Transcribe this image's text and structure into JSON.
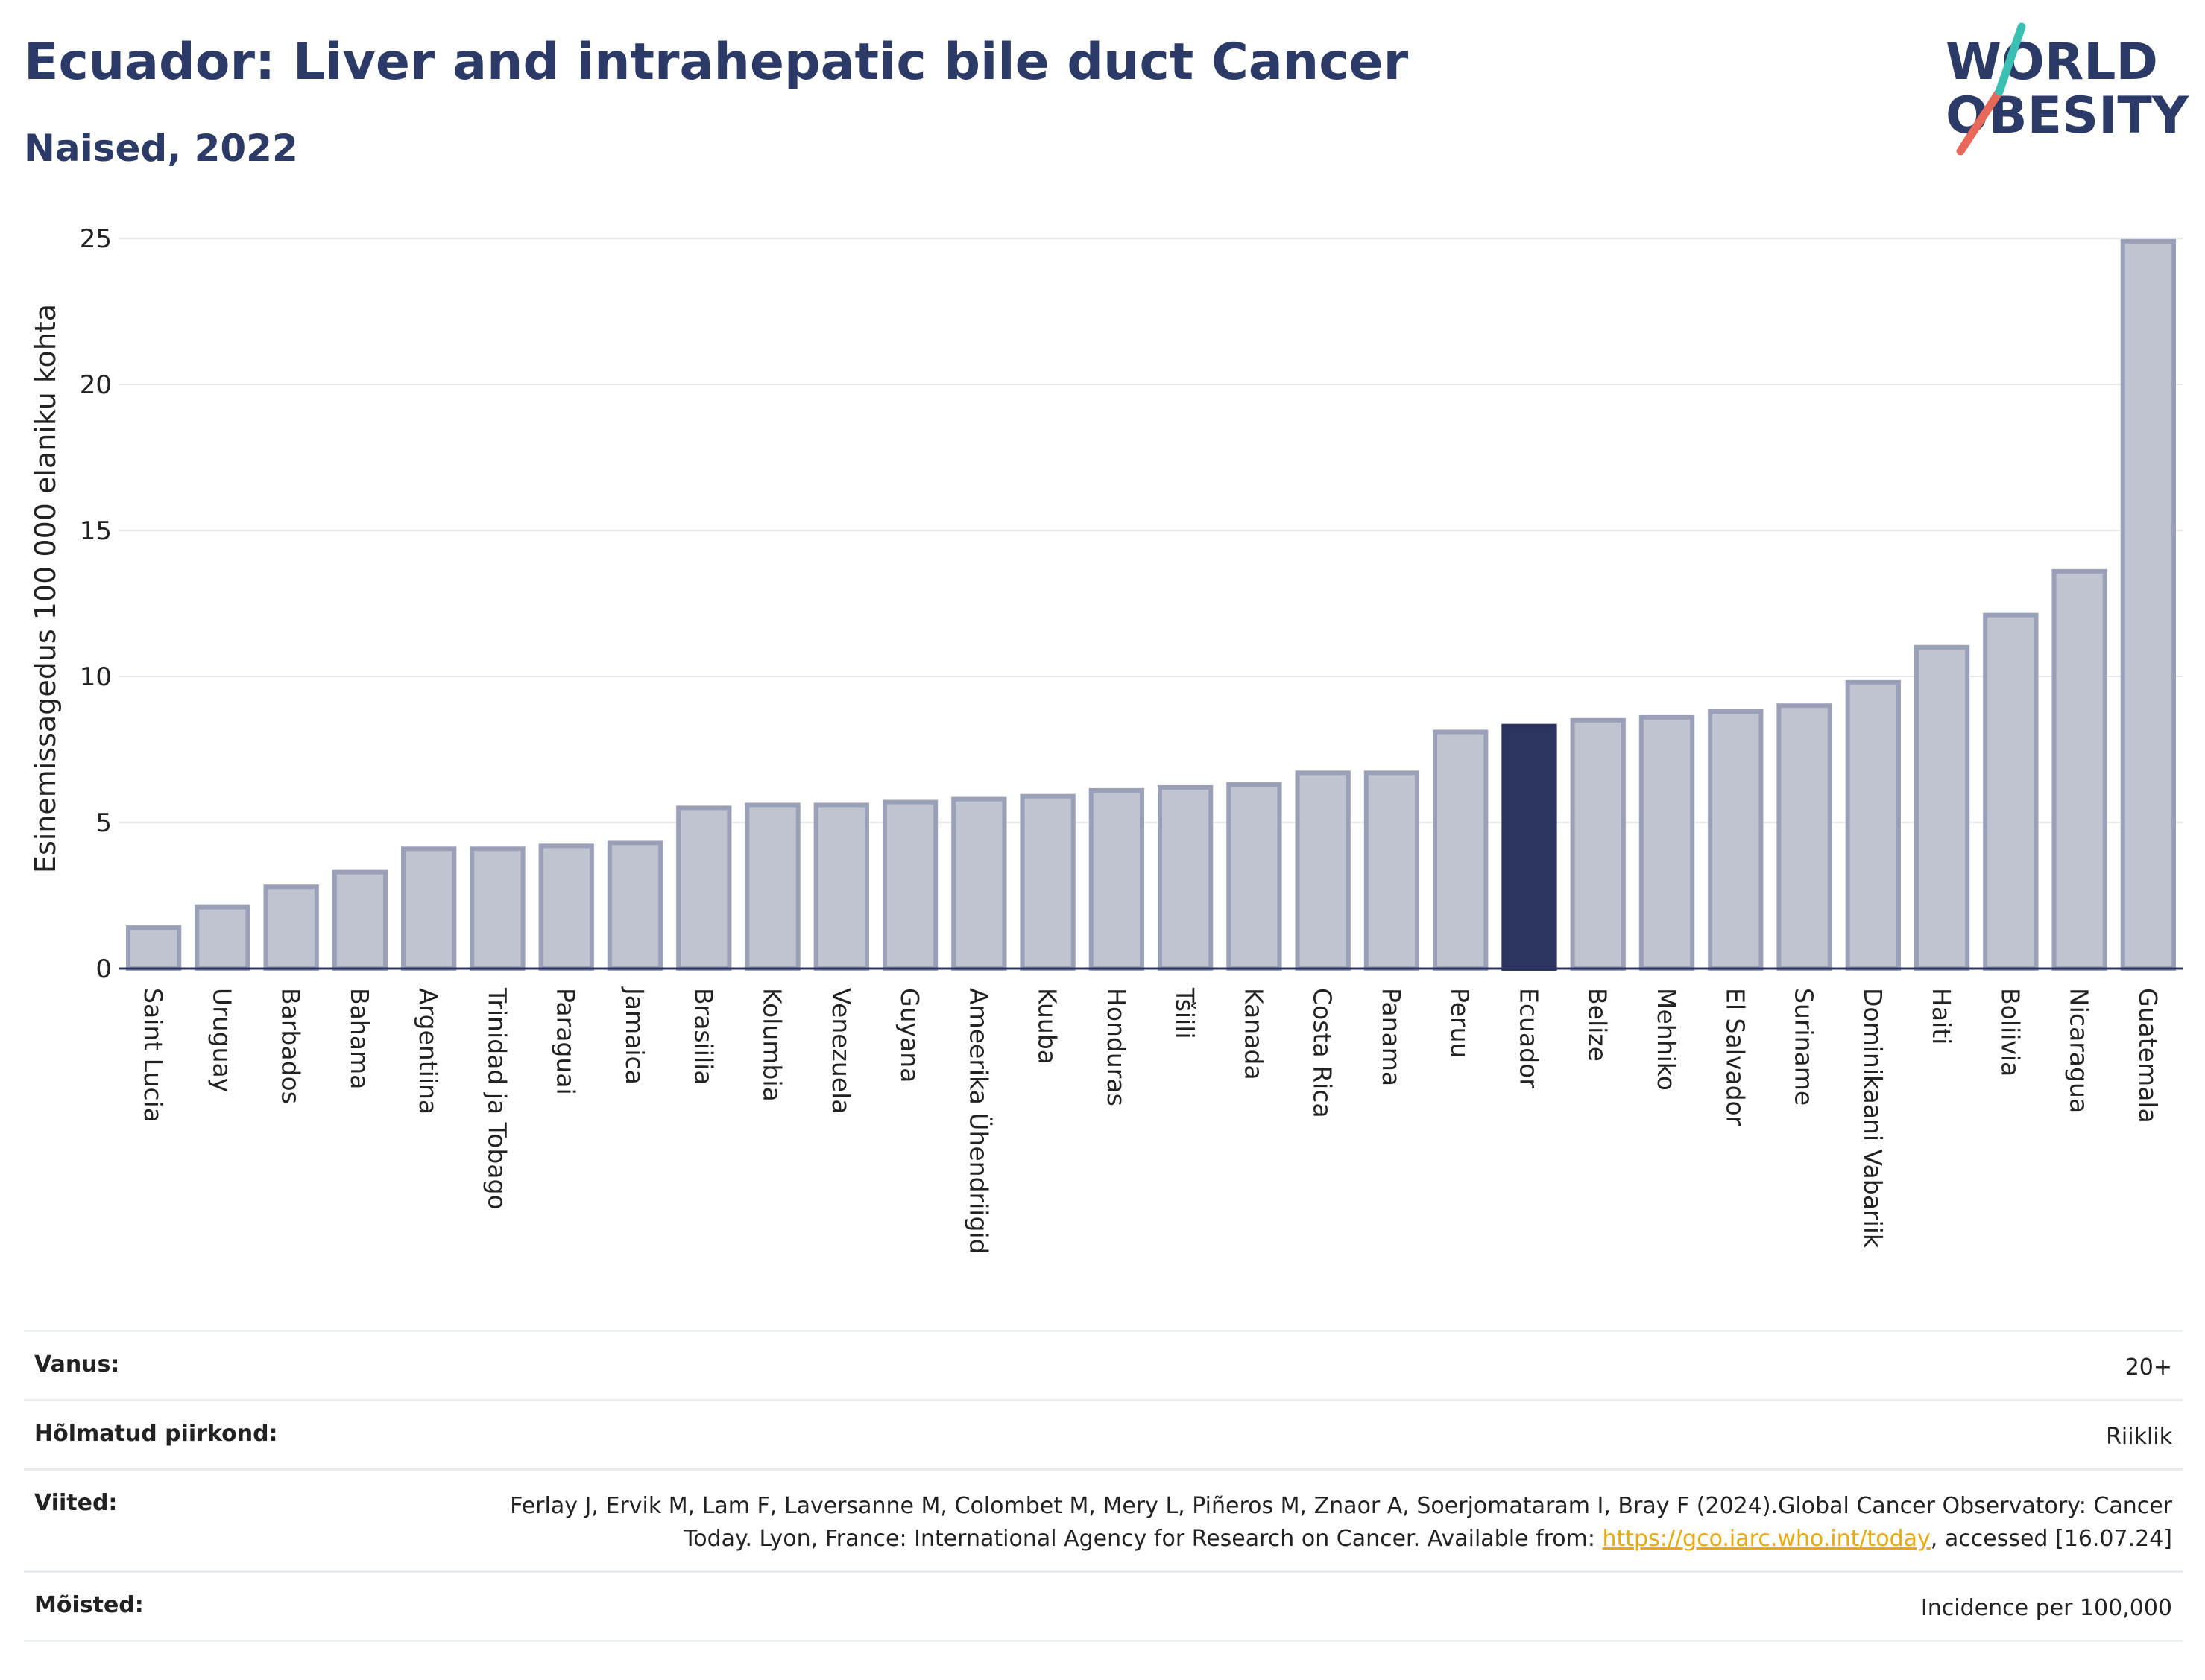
{
  "header": {
    "title": "Ecuador: Liver and intrahepatic bile duct Cancer",
    "subtitle": "Naised, 2022"
  },
  "logo": {
    "line1": "WORLD",
    "line2": "OBESITY",
    "colors": {
      "text": "#2b3a67",
      "slash_red": "#e8685a",
      "slash_teal": "#3bbfb2"
    }
  },
  "chart_data": {
    "type": "bar",
    "ylabel": "Esinemissagedus 100 000 elaniku kohta",
    "xlabel": "",
    "ylim": [
      0,
      25
    ],
    "yticks": [
      0,
      5,
      10,
      15,
      20,
      25
    ],
    "grid": true,
    "highlight": "Ecuador",
    "colors": {
      "bar": "#c0c4d1",
      "bar_border": "#9aa0b8",
      "highlight": "#2b3560"
    },
    "categories": [
      "Saint Lucia",
      "Uruguay",
      "Barbados",
      "Bahama",
      "Argentiina",
      "Trinidad ja Tobago",
      "Paraguai",
      "Jamaica",
      "Brasiilia",
      "Kolumbia",
      "Venezuela",
      "Guyana",
      "Ameerika Ühendriigid",
      "Kuuba",
      "Honduras",
      "Tšiili",
      "Kanada",
      "Costa Rica",
      "Panama",
      "Peruu",
      "Ecuador",
      "Belize",
      "Mehhiko",
      "El Salvador",
      "Suriname",
      "Dominikaani Vabariik",
      "Haiti",
      "Boliivia",
      "Nicaragua",
      "Guatemala"
    ],
    "values": [
      1.4,
      2.1,
      2.8,
      3.3,
      4.1,
      4.1,
      4.2,
      4.3,
      5.5,
      5.6,
      5.6,
      5.7,
      5.8,
      5.9,
      6.1,
      6.2,
      6.3,
      6.7,
      6.7,
      8.1,
      8.3,
      8.5,
      8.6,
      8.8,
      9.0,
      9.8,
      11.0,
      12.1,
      13.6,
      24.9
    ]
  },
  "info": {
    "rows": [
      {
        "key": "Vanus:",
        "value": "20+"
      },
      {
        "key": "Hõlmatud piirkond:",
        "value": "Riiklik"
      },
      {
        "key": "Viited:",
        "value_before": "Ferlay J, Ervik M, Lam F, Laversanne M, Colombet M, Mery L, Piñeros M, Znaor A, Soerjomataram I, Bray F (2024).Global Cancer Observatory: Cancer Today. Lyon, France: International Agency for Research on Cancer. Available from: ",
        "link": "https://gco.iarc.who.int/today",
        "value_after": ", accessed [16.07.24]"
      },
      {
        "key": "Mõisted:",
        "value": "Incidence per 100,000"
      }
    ]
  }
}
